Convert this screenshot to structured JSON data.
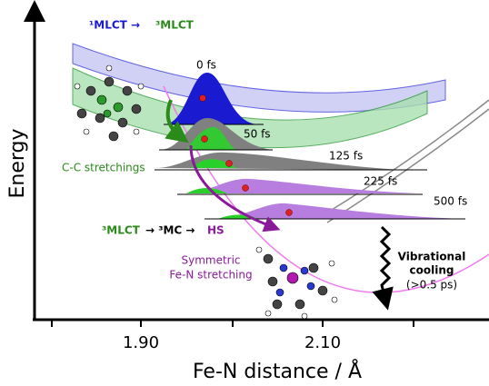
{
  "axes": {
    "y_label": "Energy",
    "x_label": "Fe-N distance / Å",
    "x_tick_labels": [
      "1.90",
      "2.10"
    ]
  },
  "labels": {
    "singlet": "¹MLCT →",
    "triplet": "³MLCT",
    "cc": "C-C stretchings",
    "times": [
      "0 fs",
      "50 fs",
      "125 fs",
      "225 fs",
      "500 fs"
    ],
    "mc_start": "³MLCT",
    "mc_mid": "→ ³MC →",
    "mc_end": "HS",
    "sym1": "Symmetric",
    "sym2": "Fe-N stretching",
    "vib1": "Vibrational",
    "vib2": "cooling",
    "vib3": "(>0.5 ps)"
  }
}
